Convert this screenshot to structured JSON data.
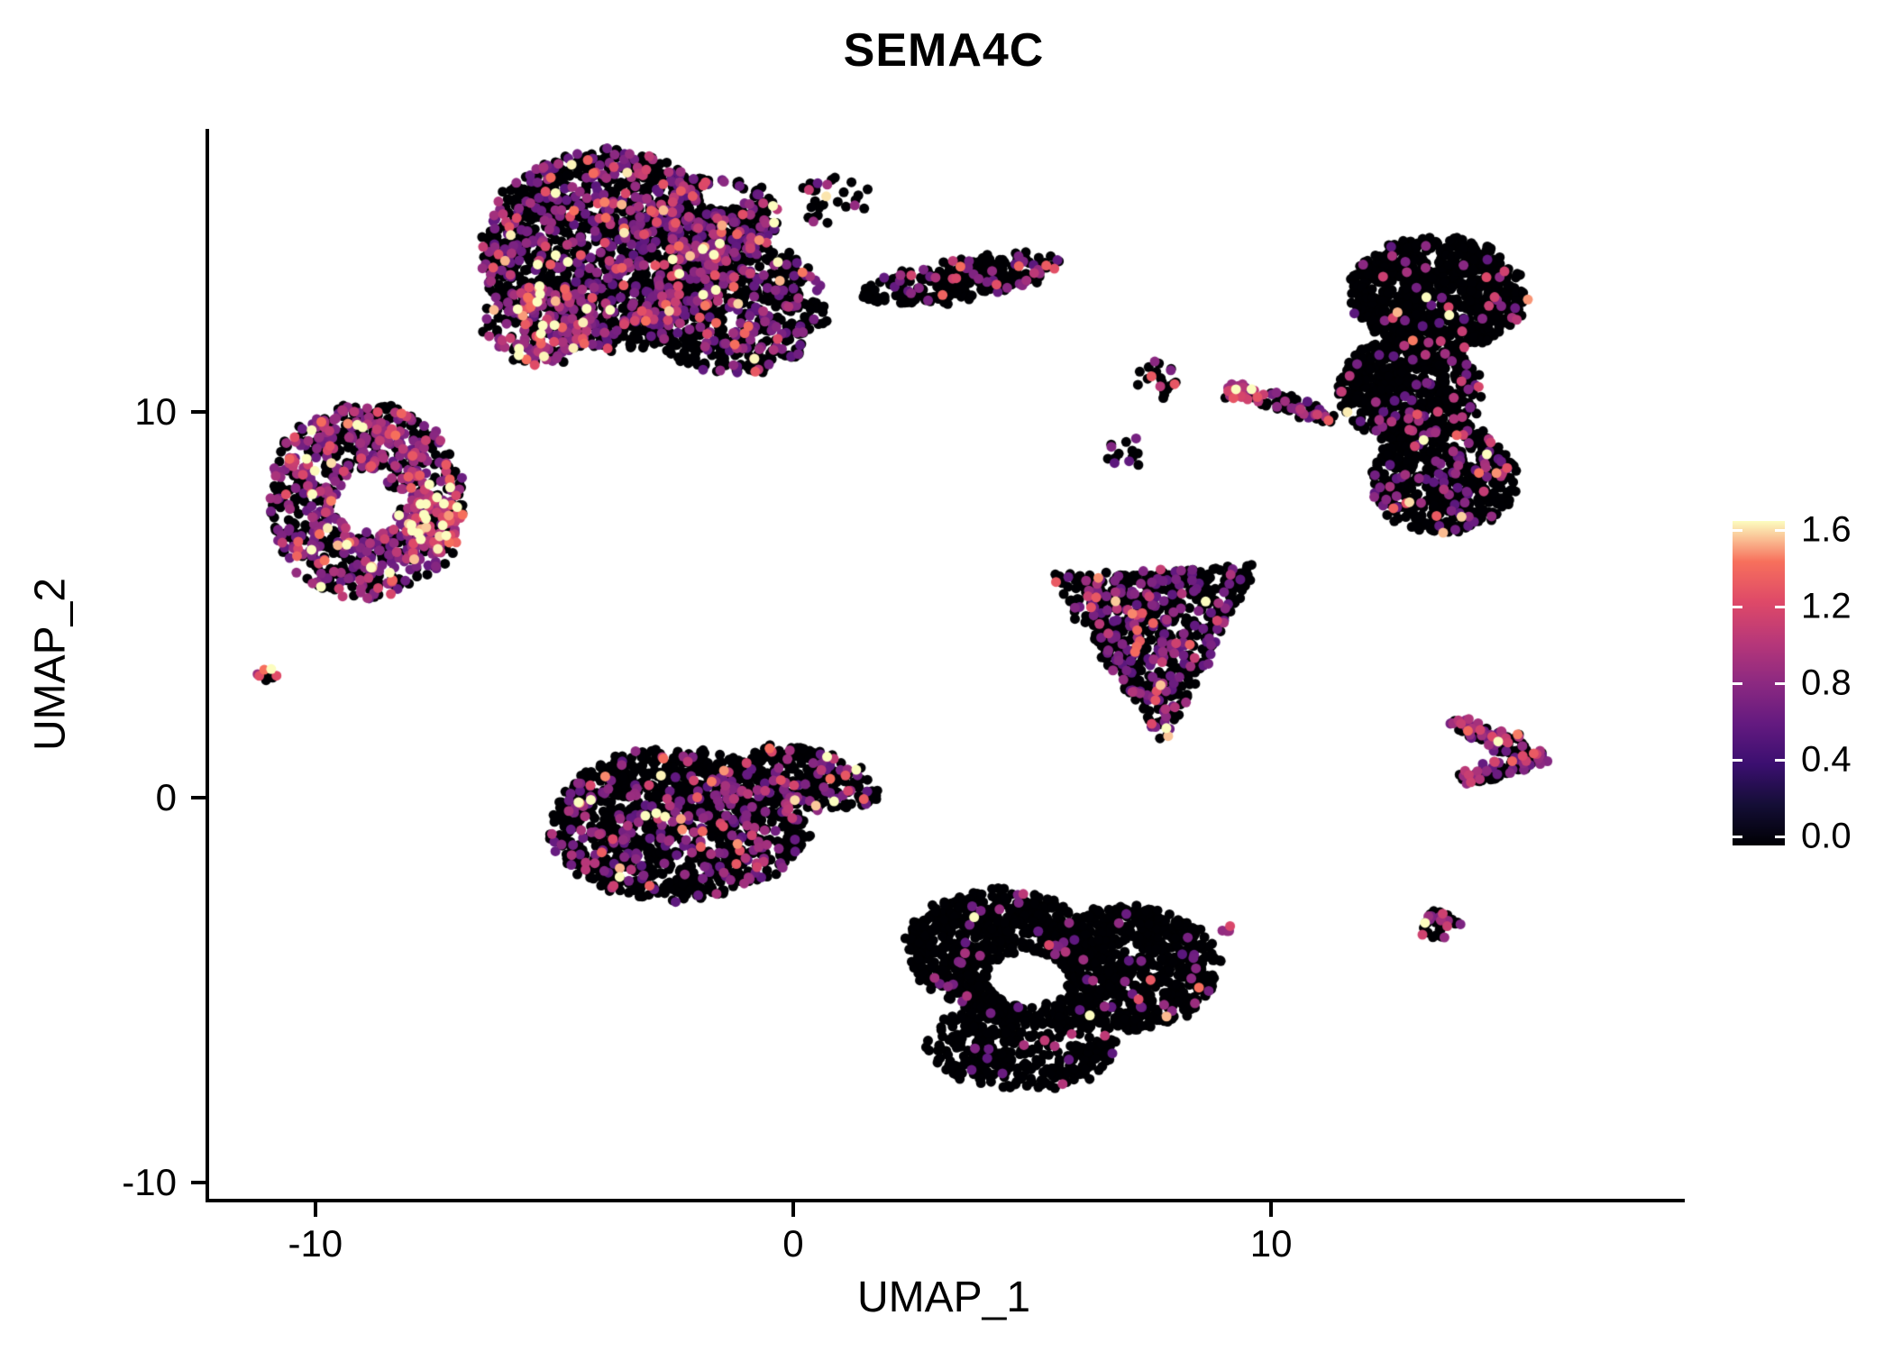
{
  "chart_data": {
    "type": "scatter",
    "title": "SEMA4C",
    "xlabel": "UMAP_1",
    "ylabel": "UMAP_2",
    "xlim": [
      -12.26,
      18.58
    ],
    "ylim": [
      -10.41,
      17.31
    ],
    "grid": false,
    "background": "#ffffff",
    "point_radius_px": 5.5,
    "seed": 42,
    "x_ticks": {
      "values": [
        -10,
        0,
        10
      ],
      "labels": [
        "-10",
        "0",
        "10"
      ]
    },
    "y_ticks": {
      "values": [
        -10,
        0,
        10
      ],
      "labels": [
        "-10",
        "0",
        "10"
      ]
    },
    "legend": {
      "position": "right",
      "min": 0,
      "max": 1.6,
      "values": [
        0.0,
        0.4,
        0.8,
        1.2,
        1.6
      ],
      "labels": [
        "0.0",
        "0.4",
        "0.8",
        "1.2",
        "1.6"
      ],
      "palette": [
        "#000004",
        "#140e36",
        "#3b0f70",
        "#641a80",
        "#8c2981",
        "#b73779",
        "#de4968",
        "#f7705c",
        "#fcfdbf"
      ]
    },
    "holes": [
      {
        "cx": -1.5,
        "cy": 15.6,
        "rx": 0.45,
        "ry": 0.35
      },
      {
        "cx": 4.9,
        "cy": -4.7,
        "rx": 0.85,
        "ry": 0.7
      }
    ],
    "clusters": [
      {
        "name": "top-blob-main",
        "shape": "ellipse",
        "cx": -3.9,
        "cy": 14.2,
        "rx": 2.6,
        "ry": 2.6,
        "n": 1500,
        "p_expr": 0.3
      },
      {
        "name": "top-blob-right-lobe",
        "shape": "ellipse",
        "cx": -1.2,
        "cy": 12.7,
        "rx": 1.9,
        "ry": 1.7,
        "n": 650,
        "p_expr": 0.26
      },
      {
        "name": "top-blob-topright-bulge",
        "shape": "ellipse",
        "cx": -1.6,
        "cy": 15.0,
        "rx": 1.3,
        "ry": 1.1,
        "n": 280,
        "p_expr": 0.28
      },
      {
        "name": "top-blob-hotspot",
        "shape": "ellipse",
        "cx": -5.3,
        "cy": 12.3,
        "rx": 1.15,
        "ry": 1.05,
        "n": 220,
        "p_expr": 0.55,
        "base": 0.7,
        "scale": 0.3
      },
      {
        "name": "top-blob-arm",
        "shape": "ellipse",
        "cx": 3.5,
        "cy": 13.45,
        "rx": 2.1,
        "ry": 0.5,
        "rot": 0.21,
        "n": 280,
        "p_expr": 0.17
      },
      {
        "name": "top-blob-scatter",
        "shape": "ellipse",
        "cx": 0.8,
        "cy": 15.5,
        "rx": 0.8,
        "ry": 0.6,
        "n": 28,
        "p_expr": 0.12
      },
      {
        "name": "left-ring",
        "shape": "ring",
        "cx": -8.95,
        "cy": 7.7,
        "rx": 2.05,
        "ry": 2.55,
        "inner": 0.32,
        "n": 850,
        "p_expr": 0.5,
        "base": 0.6,
        "scale": 0.3
      },
      {
        "name": "left-ring-hotspot",
        "shape": "ellipse",
        "cx": -7.5,
        "cy": 7.2,
        "rx": 0.6,
        "ry": 0.8,
        "n": 90,
        "p_expr": 0.72,
        "base": 0.85,
        "scale": 0.28
      },
      {
        "name": "left-tiny-pair",
        "shape": "ellipse",
        "cx": -10.95,
        "cy": 3.25,
        "rx": 0.22,
        "ry": 0.2,
        "n": 9,
        "p_expr": 0.5,
        "base": 0.85,
        "scale": 0.25
      },
      {
        "name": "centerleft-main",
        "shape": "ellipse",
        "cx": -2.4,
        "cy": -0.7,
        "rx": 2.7,
        "ry": 1.95,
        "n": 1250,
        "p_expr": 0.2
      },
      {
        "name": "centerleft-arm",
        "shape": "ellipse",
        "cx": 0.4,
        "cy": 0.5,
        "rx": 1.4,
        "ry": 0.75,
        "rot": -0.35,
        "n": 240,
        "p_expr": 0.2
      },
      {
        "name": "midright-triangle",
        "shape": "triangle",
        "verts": [
          [
            5.38,
            5.73
          ],
          [
            9.72,
            6.08
          ],
          [
            7.74,
            1.4
          ]
        ],
        "n": 700,
        "p_expr": 0.27
      },
      {
        "name": "right-band-top",
        "shape": "ellipse",
        "cx": 13.5,
        "cy": 13.1,
        "rx": 1.85,
        "ry": 1.45,
        "n": 800,
        "p_expr": 0.06
      },
      {
        "name": "right-band-mid",
        "shape": "ellipse",
        "cx": 12.9,
        "cy": 10.6,
        "rx": 1.5,
        "ry": 1.35,
        "n": 600,
        "p_expr": 0.08
      },
      {
        "name": "right-band-bottom",
        "shape": "ellipse",
        "cx": 13.6,
        "cy": 8.3,
        "rx": 1.5,
        "ry": 1.45,
        "n": 550,
        "p_expr": 0.13
      },
      {
        "name": "mid-small-upper",
        "shape": "ellipse",
        "cx": 7.6,
        "cy": 10.9,
        "rx": 0.45,
        "ry": 0.5,
        "n": 22,
        "p_expr": 0.25
      },
      {
        "name": "mid-small-lower",
        "shape": "ellipse",
        "cx": 6.9,
        "cy": 9.0,
        "rx": 0.4,
        "ry": 0.55,
        "n": 14,
        "p_expr": 0.2
      },
      {
        "name": "mid-streak-hotspot",
        "shape": "ellipse",
        "cx": 9.3,
        "cy": 10.55,
        "rx": 0.3,
        "ry": 0.22,
        "n": 26,
        "p_expr": 0.85,
        "base": 0.85,
        "scale": 0.3
      },
      {
        "name": "mid-streak",
        "shape": "ellipse",
        "cx": 10.4,
        "cy": 10.2,
        "rx": 1.05,
        "ry": 0.2,
        "rot": -0.36,
        "n": 70,
        "p_expr": 0.3
      },
      {
        "name": "bottom-left-lobe",
        "shape": "ellipse",
        "cx": 4.3,
        "cy": -3.9,
        "rx": 1.9,
        "ry": 1.5,
        "n": 700,
        "p_expr": 0.03
      },
      {
        "name": "bottom-right-lobe",
        "shape": "ellipse",
        "cx": 7.0,
        "cy": -4.4,
        "rx": 1.9,
        "ry": 1.6,
        "n": 750,
        "p_expr": 0.04
      },
      {
        "name": "bottom-lower-lobe",
        "shape": "ellipse",
        "cx": 4.8,
        "cy": -6.4,
        "rx": 2.0,
        "ry": 1.15,
        "n": 450,
        "p_expr": 0.03
      },
      {
        "name": "bottom-right-dots",
        "shape": "ellipse",
        "cx": 9.1,
        "cy": -3.4,
        "rx": 0.18,
        "ry": 0.14,
        "n": 4,
        "p_expr": 0.9,
        "base": 0.75,
        "scale": 0.15
      },
      {
        "name": "right-chevron-top",
        "shape": "ellipse",
        "cx": 14.7,
        "cy": 1.55,
        "rx": 1.1,
        "ry": 0.26,
        "rot": -0.42,
        "n": 90,
        "p_expr": 0.45,
        "base": 0.6,
        "scale": 0.25
      },
      {
        "name": "right-chevron-bottom",
        "shape": "ellipse",
        "cx": 14.9,
        "cy": 0.75,
        "rx": 1.0,
        "ry": 0.24,
        "rot": 0.25,
        "n": 80,
        "p_expr": 0.45,
        "base": 0.6,
        "scale": 0.25
      },
      {
        "name": "right-small-circle",
        "shape": "ellipse",
        "cx": 13.5,
        "cy": -3.3,
        "rx": 0.4,
        "ry": 0.36,
        "n": 40,
        "p_expr": 0.3,
        "base": 0.7,
        "scale": 0.3
      }
    ]
  }
}
